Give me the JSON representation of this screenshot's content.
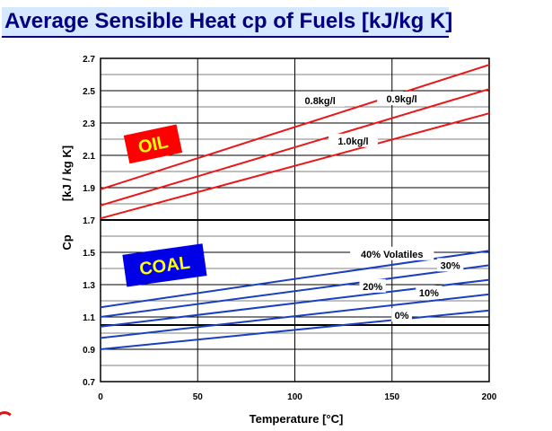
{
  "title": "Average Sensible Heat cp of Fuels [kJ/kg K]",
  "chart_data": {
    "type": "line",
    "title": "Average Sensible Heat cp of Fuels [kJ/kg K]",
    "xlabel": "Temperature [°C]",
    "ylabel": "Cp",
    "ylabel_unit": "[kJ / kg K]",
    "xlim": [
      0,
      200
    ],
    "ylim": [
      0.7,
      2.7
    ],
    "x_ticks": [
      "0",
      "50",
      "100",
      "150",
      "200"
    ],
    "y_ticks": [
      "0.7",
      "0.9",
      "1.1",
      "1.3",
      "1.5",
      "1.7",
      "1.9",
      "2.1",
      "2.3",
      "2.5",
      "2.7"
    ],
    "grid": true,
    "groups": {
      "oil": {
        "label": "OIL",
        "color": "#e81818",
        "badge_bg": "#ff0000",
        "badge_fg": "#ffff00"
      },
      "coal": {
        "label": "COAL",
        "color": "#1a3fbf",
        "badge_bg": "#0000e6",
        "badge_fg": "#ffff00"
      }
    },
    "series": [
      {
        "name": "0.8kg/l",
        "group": "oil",
        "x": [
          0,
          200
        ],
        "y": [
          1.89,
          2.66
        ]
      },
      {
        "name": "0.9kg/l",
        "group": "oil",
        "x": [
          0,
          200
        ],
        "y": [
          1.79,
          2.51
        ]
      },
      {
        "name": "1.0kg/l",
        "group": "oil",
        "x": [
          0,
          200
        ],
        "y": [
          1.71,
          2.36
        ]
      },
      {
        "name": "40% Volatiles",
        "group": "coal",
        "x": [
          0,
          200
        ],
        "y": [
          1.16,
          1.51
        ]
      },
      {
        "name": "30%",
        "group": "coal",
        "x": [
          0,
          200
        ],
        "y": [
          1.1,
          1.42
        ]
      },
      {
        "name": "20%",
        "group": "coal",
        "x": [
          0,
          200
        ],
        "y": [
          1.04,
          1.33
        ]
      },
      {
        "name": "10%",
        "group": "coal",
        "x": [
          0,
          200
        ],
        "y": [
          0.97,
          1.24
        ]
      },
      {
        "name": "0%",
        "group": "coal",
        "x": [
          0,
          200
        ],
        "y": [
          0.9,
          1.14
        ]
      }
    ],
    "labels": [
      {
        "text": "0.8kg/l",
        "x": 113,
        "y": 2.44
      },
      {
        "text": "0.9kg/l",
        "x": 155,
        "y": 2.45
      },
      {
        "text": "1.0kg/l",
        "x": 130,
        "y": 2.19
      },
      {
        "text": "40% Volatiles",
        "x": 150,
        "y": 1.49
      },
      {
        "text": "30%",
        "x": 180,
        "y": 1.42
      },
      {
        "text": "20%",
        "x": 140,
        "y": 1.29
      },
      {
        "text": "10%",
        "x": 169,
        "y": 1.25
      },
      {
        "text": "0%",
        "x": 155,
        "y": 1.11
      }
    ]
  }
}
